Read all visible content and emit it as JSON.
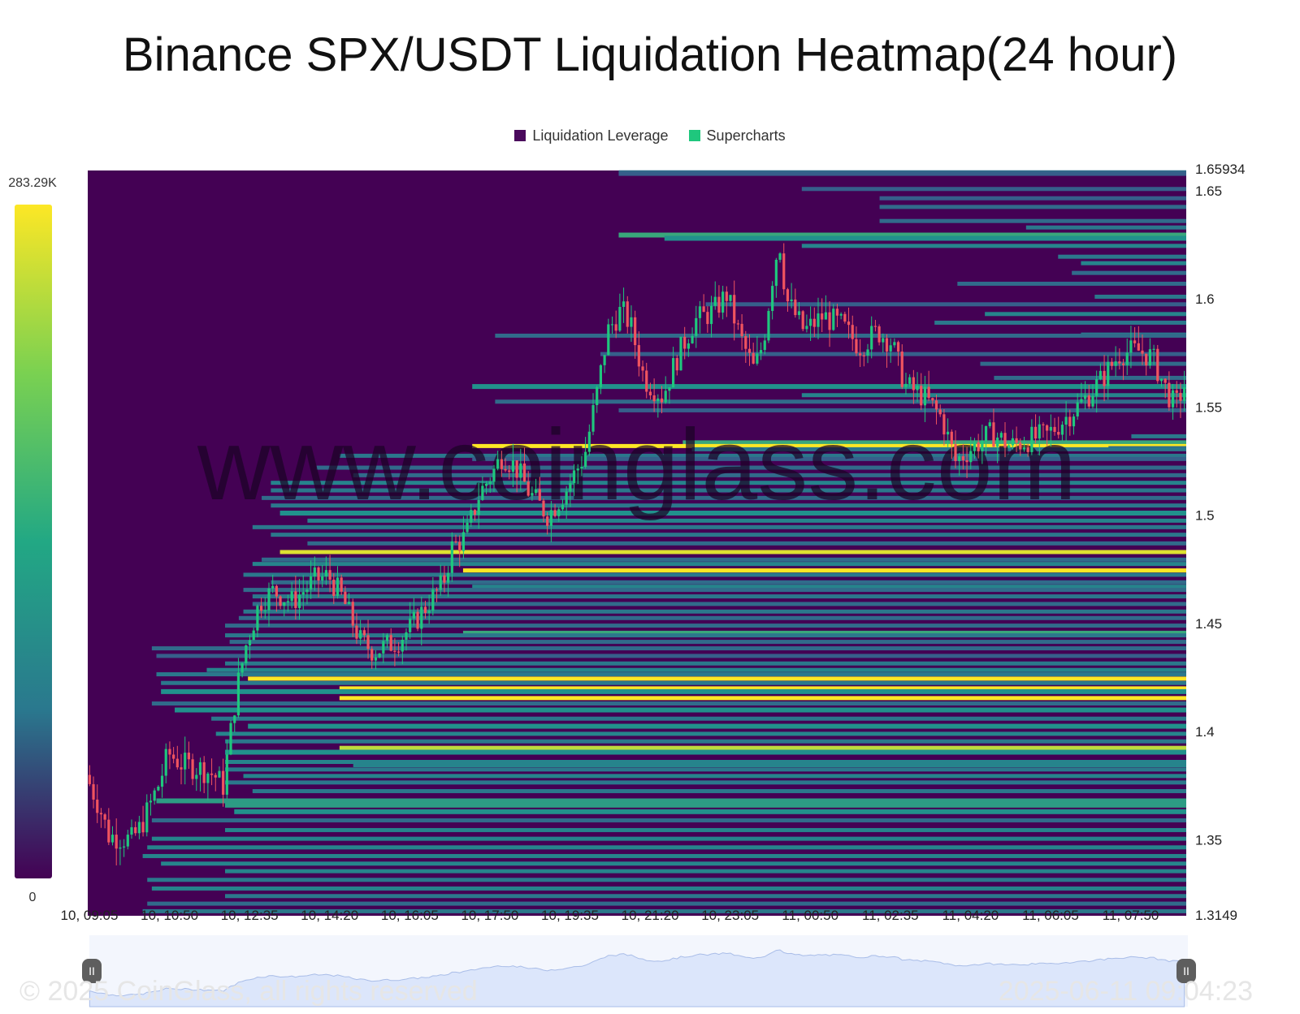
{
  "title": "Binance SPX/USDT Liquidation Heatmap(24 hour)",
  "legend": [
    {
      "label": "Liquidation Leverage",
      "color": "#4a0a5c"
    },
    {
      "label": "Supercharts",
      "color": "#1fc77d"
    }
  ],
  "watermark": "www.coinglass.com",
  "footer": {
    "copyright": "© 2025 CoinGlass, all rights reserved",
    "timestamp": "2025-06-11 09:04:23"
  },
  "colors": {
    "background": "#440154",
    "candle_up": "#1fc77d",
    "candle_down": "#f0545f",
    "scale_top": "#fde725",
    "scale_mid": "#21918c",
    "scale_bottom": "#440154",
    "navigator_fill": "#dce6fb",
    "navigator_line": "#a9bde8"
  },
  "chart_data": {
    "type": "heatmap",
    "y_axis": {
      "min": 1.3149,
      "max": 1.65934,
      "ticks": [
        1.65934,
        1.65,
        1.6,
        1.55,
        1.5,
        1.45,
        1.4,
        1.35,
        1.3149
      ]
    },
    "x_axis": {
      "ticks": [
        "10, 09:05",
        "10, 10:50",
        "10, 12:35",
        "10, 14:20",
        "10, 16:05",
        "10, 17:50",
        "10, 19:35",
        "10, 21:20",
        "10, 23:05",
        "11, 00:50",
        "11, 02:35",
        "11, 04:20",
        "11, 06:05",
        "11, 07:50"
      ],
      "interval_minutes": 105,
      "end_hours": 24
    },
    "color_scale": {
      "max_label": "283.29K",
      "min_label": "0",
      "max": 283290,
      "min": 0
    },
    "price_path": [
      [
        0.0,
        1.38
      ],
      [
        0.3,
        1.365
      ],
      [
        0.5,
        1.352
      ],
      [
        1.0,
        1.35
      ],
      [
        1.2,
        1.356
      ],
      [
        1.6,
        1.376
      ],
      [
        1.8,
        1.39
      ],
      [
        2.1,
        1.385
      ],
      [
        2.5,
        1.383
      ],
      [
        2.8,
        1.38
      ],
      [
        3.0,
        1.375
      ],
      [
        3.1,
        1.39
      ],
      [
        3.3,
        1.42
      ],
      [
        3.5,
        1.44
      ],
      [
        3.8,
        1.46
      ],
      [
        4.1,
        1.465
      ],
      [
        4.5,
        1.46
      ],
      [
        5.0,
        1.47
      ],
      [
        5.3,
        1.472
      ],
      [
        5.6,
        1.462
      ],
      [
        6.0,
        1.442
      ],
      [
        6.3,
        1.437
      ],
      [
        6.8,
        1.442
      ],
      [
        7.1,
        1.448
      ],
      [
        7.5,
        1.46
      ],
      [
        7.8,
        1.468
      ],
      [
        8.0,
        1.485
      ],
      [
        8.3,
        1.49
      ],
      [
        8.6,
        1.51
      ],
      [
        8.9,
        1.52
      ],
      [
        9.1,
        1.528
      ],
      [
        9.4,
        1.522
      ],
      [
        9.7,
        1.51
      ],
      [
        10.1,
        1.5
      ],
      [
        10.5,
        1.512
      ],
      [
        10.9,
        1.528
      ],
      [
        11.2,
        1.56
      ],
      [
        11.4,
        1.585
      ],
      [
        11.7,
        1.595
      ],
      [
        11.9,
        1.588
      ],
      [
        12.2,
        1.563
      ],
      [
        12.6,
        1.555
      ],
      [
        12.9,
        1.572
      ],
      [
        13.3,
        1.59
      ],
      [
        13.7,
        1.594
      ],
      [
        14.0,
        1.602
      ],
      [
        14.3,
        1.582
      ],
      [
        14.6,
        1.567
      ],
      [
        14.8,
        1.58
      ],
      [
        15.0,
        1.61
      ],
      [
        15.15,
        1.628
      ],
      [
        15.3,
        1.6
      ],
      [
        15.7,
        1.585
      ],
      [
        16.1,
        1.592
      ],
      [
        16.5,
        1.588
      ],
      [
        16.9,
        1.578
      ],
      [
        17.3,
        1.585
      ],
      [
        17.6,
        1.58
      ],
      [
        17.9,
        1.56
      ],
      [
        18.3,
        1.555
      ],
      [
        18.7,
        1.545
      ],
      [
        19.0,
        1.525
      ],
      [
        19.4,
        1.532
      ],
      [
        19.8,
        1.538
      ],
      [
        20.2,
        1.532
      ],
      [
        20.6,
        1.535
      ],
      [
        21.0,
        1.537
      ],
      [
        21.4,
        1.545
      ],
      [
        21.8,
        1.553
      ],
      [
        22.2,
        1.563
      ],
      [
        22.6,
        1.575
      ],
      [
        23.0,
        1.576
      ],
      [
        23.3,
        1.573
      ],
      [
        23.6,
        1.558
      ],
      [
        23.8,
        1.55
      ],
      [
        24.0,
        1.56
      ],
      [
        24.3,
        1.57
      ],
      [
        24.6,
        1.578
      ]
    ],
    "bands": [
      {
        "p": 1.6585,
        "s": 11.6,
        "lvl": 0.35
      },
      {
        "p": 1.6578,
        "s": 11.6,
        "lvl": 0.3
      },
      {
        "p": 1.6508,
        "s": 15.6,
        "lvl": 0.3
      },
      {
        "p": 1.6465,
        "s": 17.3,
        "lvl": 0.3
      },
      {
        "p": 1.6425,
        "s": 17.3,
        "lvl": 0.35
      },
      {
        "p": 1.636,
        "s": 17.3,
        "lvl": 0.35
      },
      {
        "p": 1.633,
        "s": 20.5,
        "lvl": 0.4
      },
      {
        "p": 1.6295,
        "s": 11.6,
        "lvl": 0.6
      },
      {
        "p": 1.628,
        "s": 12.6,
        "lvl": 0.5
      },
      {
        "p": 1.6245,
        "s": 15.6,
        "lvl": 0.45
      },
      {
        "p": 1.6195,
        "s": 21.2,
        "lvl": 0.4
      },
      {
        "p": 1.6165,
        "s": 21.7,
        "lvl": 0.45
      },
      {
        "p": 1.612,
        "s": 21.5,
        "lvl": 0.35
      },
      {
        "p": 1.607,
        "s": 19.0,
        "lvl": 0.35
      },
      {
        "p": 1.601,
        "s": 22.0,
        "lvl": 0.4
      },
      {
        "p": 1.5975,
        "s": 13.5,
        "lvl": 0.3
      },
      {
        "p": 1.593,
        "s": 19.6,
        "lvl": 0.45
      },
      {
        "p": 1.589,
        "s": 18.5,
        "lvl": 0.4
      },
      {
        "p": 1.5835,
        "s": 21.7,
        "lvl": 0.4
      },
      {
        "p": 1.583,
        "s": 8.9,
        "lvl": 0.35
      },
      {
        "p": 1.5745,
        "s": 11.2,
        "lvl": 0.3
      },
      {
        "p": 1.57,
        "s": 19.5,
        "lvl": 0.35
      },
      {
        "p": 1.5635,
        "s": 19.8,
        "lvl": 0.35
      },
      {
        "p": 1.5595,
        "s": 8.4,
        "lvl": 0.5
      },
      {
        "p": 1.5555,
        "s": 15.6,
        "lvl": 0.45
      },
      {
        "p": 1.5525,
        "s": 8.9,
        "lvl": 0.35
      },
      {
        "p": 1.5485,
        "s": 11.6,
        "lvl": 0.3
      },
      {
        "p": 1.5365,
        "s": 22.8,
        "lvl": 0.4
      },
      {
        "p": 1.5335,
        "s": 13.0,
        "lvl": 0.6
      },
      {
        "p": 1.532,
        "s": 8.4,
        "lvl": 1.0
      },
      {
        "p": 1.531,
        "s": 22.3,
        "lvl": 0.35
      },
      {
        "p": 1.5305,
        "s": 13.2,
        "lvl": 0.4
      },
      {
        "p": 1.5275,
        "s": 5.5,
        "lvl": 0.4
      },
      {
        "p": 1.526,
        "s": 8.4,
        "lvl": 0.3
      },
      {
        "p": 1.522,
        "s": 5.0,
        "lvl": 0.35
      },
      {
        "p": 1.5185,
        "s": 5.8,
        "lvl": 0.35
      },
      {
        "p": 1.515,
        "s": 4.0,
        "lvl": 0.45
      },
      {
        "p": 1.5115,
        "s": 4.0,
        "lvl": 0.4
      },
      {
        "p": 1.508,
        "s": 3.8,
        "lvl": 0.35
      },
      {
        "p": 1.5045,
        "s": 4.0,
        "lvl": 0.4
      },
      {
        "p": 1.501,
        "s": 4.2,
        "lvl": 0.5
      },
      {
        "p": 1.4975,
        "s": 4.8,
        "lvl": 0.45
      },
      {
        "p": 1.4945,
        "s": 3.6,
        "lvl": 0.4
      },
      {
        "p": 1.491,
        "s": 4.0,
        "lvl": 0.4
      },
      {
        "p": 1.487,
        "s": 4.8,
        "lvl": 0.35
      },
      {
        "p": 1.483,
        "s": 4.2,
        "lvl": 0.95
      },
      {
        "p": 1.4795,
        "s": 3.8,
        "lvl": 0.35
      },
      {
        "p": 1.4775,
        "s": 3.6,
        "lvl": 0.45
      },
      {
        "p": 1.4745,
        "s": 8.2,
        "lvl": 1.0
      },
      {
        "p": 1.4725,
        "s": 3.4,
        "lvl": 0.4
      },
      {
        "p": 1.469,
        "s": 4.0,
        "lvl": 0.35
      },
      {
        "p": 1.467,
        "s": 8.4,
        "lvl": 0.45
      },
      {
        "p": 1.4655,
        "s": 3.4,
        "lvl": 0.35
      },
      {
        "p": 1.4625,
        "s": 3.6,
        "lvl": 0.4
      },
      {
        "p": 1.459,
        "s": 3.6,
        "lvl": 0.35
      },
      {
        "p": 1.4555,
        "s": 3.4,
        "lvl": 0.4
      },
      {
        "p": 1.4525,
        "s": 3.3,
        "lvl": 0.35
      },
      {
        "p": 1.449,
        "s": 3.0,
        "lvl": 0.35
      },
      {
        "p": 1.4455,
        "s": 8.2,
        "lvl": 0.6
      },
      {
        "p": 1.4445,
        "s": 3.0,
        "lvl": 0.4
      },
      {
        "p": 1.4415,
        "s": 3.1,
        "lvl": 0.35
      },
      {
        "p": 1.4385,
        "s": 1.4,
        "lvl": 0.35
      },
      {
        "p": 1.435,
        "s": 1.5,
        "lvl": 0.3
      },
      {
        "p": 1.4315,
        "s": 3.0,
        "lvl": 0.4
      },
      {
        "p": 1.4285,
        "s": 2.6,
        "lvl": 0.45
      },
      {
        "p": 1.4265,
        "s": 1.5,
        "lvl": 0.4
      },
      {
        "p": 1.4245,
        "s": 3.5,
        "lvl": 1.0
      },
      {
        "p": 1.4225,
        "s": 1.6,
        "lvl": 0.4
      },
      {
        "p": 1.42,
        "s": 5.5,
        "lvl": 1.0
      },
      {
        "p": 1.4185,
        "s": 1.6,
        "lvl": 0.5
      },
      {
        "p": 1.4155,
        "s": 5.5,
        "lvl": 1.0
      },
      {
        "p": 1.413,
        "s": 1.4,
        "lvl": 0.35
      },
      {
        "p": 1.41,
        "s": 1.9,
        "lvl": 0.5
      },
      {
        "p": 1.406,
        "s": 2.7,
        "lvl": 0.4
      },
      {
        "p": 1.4025,
        "s": 3.5,
        "lvl": 0.5
      },
      {
        "p": 1.399,
        "s": 2.8,
        "lvl": 0.45
      },
      {
        "p": 1.3955,
        "s": 3.0,
        "lvl": 0.4
      },
      {
        "p": 1.3925,
        "s": 5.5,
        "lvl": 0.9
      },
      {
        "p": 1.3905,
        "s": 3.0,
        "lvl": 0.5
      },
      {
        "p": 1.386,
        "s": 3.0,
        "lvl": 0.45
      },
      {
        "p": 1.3845,
        "s": 5.8,
        "lvl": 0.45
      },
      {
        "p": 1.3825,
        "s": 3.0,
        "lvl": 0.4
      },
      {
        "p": 1.3795,
        "s": 3.4,
        "lvl": 0.45
      },
      {
        "p": 1.3765,
        "s": 3.0,
        "lvl": 0.4
      },
      {
        "p": 1.3725,
        "s": 3.6,
        "lvl": 0.4
      },
      {
        "p": 1.368,
        "s": 1.5,
        "lvl": 0.55
      },
      {
        "p": 1.366,
        "s": 3.0,
        "lvl": 0.55
      },
      {
        "p": 1.363,
        "s": 3.2,
        "lvl": 0.5
      },
      {
        "p": 1.359,
        "s": 1.4,
        "lvl": 0.35
      },
      {
        "p": 1.3545,
        "s": 3.0,
        "lvl": 0.45
      },
      {
        "p": 1.3505,
        "s": 1.4,
        "lvl": 0.45
      },
      {
        "p": 1.3465,
        "s": 1.3,
        "lvl": 0.45
      },
      {
        "p": 1.3425,
        "s": 1.2,
        "lvl": 0.45
      },
      {
        "p": 1.339,
        "s": 1.6,
        "lvl": 0.45
      },
      {
        "p": 1.3355,
        "s": 3.0,
        "lvl": 0.45
      },
      {
        "p": 1.3315,
        "s": 1.3,
        "lvl": 0.4
      },
      {
        "p": 1.3275,
        "s": 1.4,
        "lvl": 0.45
      },
      {
        "p": 1.324,
        "s": 3.0,
        "lvl": 0.4
      },
      {
        "p": 1.3205,
        "s": 1.3,
        "lvl": 0.35
      },
      {
        "p": 1.317,
        "s": 1.2,
        "lvl": 0.4
      }
    ]
  }
}
